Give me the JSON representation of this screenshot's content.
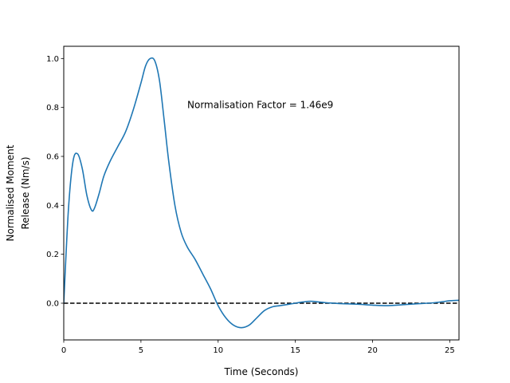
{
  "chart_data": {
    "type": "line",
    "title": "",
    "xlabel": "Time (Seconds)",
    "ylabel_lines": [
      "Normalised Moment",
      "Release (Nm/s)"
    ],
    "xlim": [
      0,
      25.6
    ],
    "ylim": [
      -0.15,
      1.05
    ],
    "xticks": [
      0,
      5,
      10,
      15,
      20,
      25
    ],
    "yticks": [
      0.0,
      0.2,
      0.4,
      0.6,
      0.8,
      1.0
    ],
    "xtick_labels": [
      "0",
      "5",
      "10",
      "15",
      "20",
      "25"
    ],
    "ytick_labels": [
      "0.0",
      "0.2",
      "0.4",
      "0.6",
      "0.8",
      "1.0"
    ],
    "grid": false,
    "annotation": {
      "text": "Normalisation Factor = 1.46e9",
      "x": 8.0,
      "y": 0.81
    },
    "reference_line": {
      "y": 0.0,
      "style": "dashed",
      "color": "#000000"
    },
    "series": [
      {
        "color": "#1f77b4",
        "x": [
          0.0,
          0.3,
          0.6,
          0.9,
          1.2,
          1.5,
          1.8,
          2.0,
          2.3,
          2.6,
          3.0,
          3.5,
          4.0,
          4.5,
          5.0,
          5.3,
          5.6,
          5.9,
          6.2,
          6.5,
          6.8,
          7.2,
          7.6,
          8.0,
          8.5,
          9.0,
          9.5,
          10.0,
          10.5,
          11.0,
          11.5,
          12.0,
          12.5,
          13.0,
          13.5,
          14.0,
          14.5,
          15.0,
          15.5,
          16.0,
          16.5,
          17.0,
          17.5,
          18.0,
          19.0,
          20.0,
          21.0,
          22.0,
          23.0,
          24.0,
          25.0,
          25.6
        ],
        "y": [
          0.0,
          0.38,
          0.58,
          0.61,
          0.55,
          0.44,
          0.38,
          0.39,
          0.45,
          0.52,
          0.58,
          0.64,
          0.7,
          0.79,
          0.9,
          0.97,
          1.0,
          0.99,
          0.91,
          0.75,
          0.58,
          0.4,
          0.29,
          0.23,
          0.18,
          0.12,
          0.06,
          -0.01,
          -0.06,
          -0.09,
          -0.1,
          -0.09,
          -0.06,
          -0.03,
          -0.015,
          -0.01,
          -0.005,
          0.0,
          0.005,
          0.008,
          0.005,
          0.002,
          0.0,
          -0.002,
          -0.004,
          -0.008,
          -0.01,
          -0.006,
          -0.002,
          0.002,
          0.01,
          0.012
        ]
      }
    ]
  }
}
